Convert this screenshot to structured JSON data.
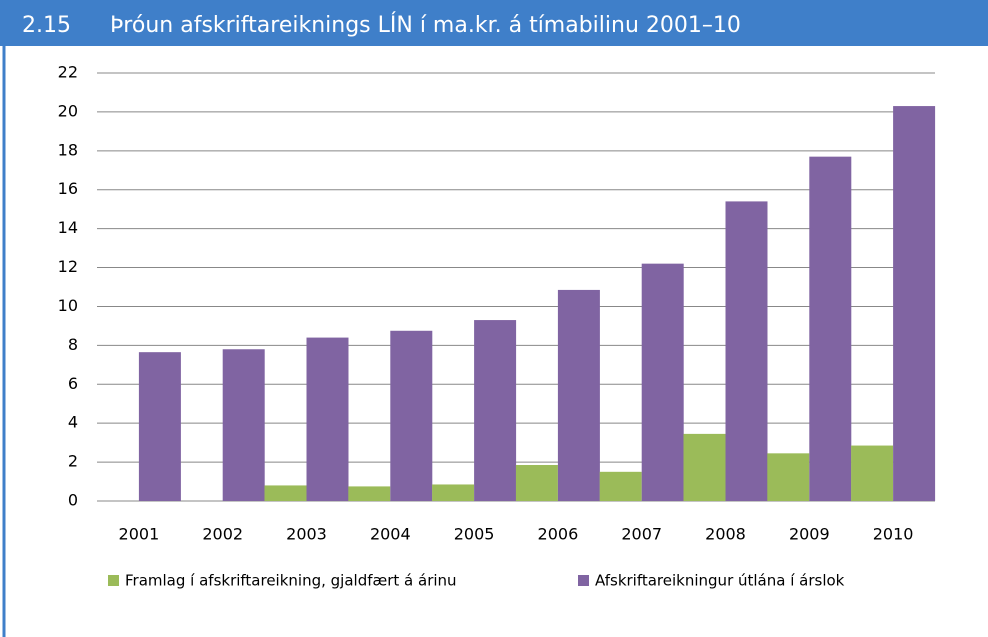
{
  "chart_data": {
    "type": "bar",
    "number": "2.15",
    "title": "Þróun afskriftareiknings LÍN í ma.kr. á tímabilinu 2001–10",
    "categories": [
      "2001",
      "2002",
      "2003",
      "2004",
      "2005",
      "2006",
      "2007",
      "2008",
      "2009",
      "2010"
    ],
    "series": [
      {
        "name": "Framlag í afskriftareikning, gjaldfært á árinu",
        "color": "#9bbb59",
        "values": [
          null,
          null,
          0.8,
          0.75,
          0.85,
          1.85,
          1.5,
          3.45,
          2.45,
          2.85
        ]
      },
      {
        "name": "Afskriftareikningur útlána í árslok",
        "color": "#8064a2",
        "values": [
          7.65,
          7.8,
          8.4,
          8.75,
          9.3,
          10.85,
          12.2,
          15.4,
          17.7,
          20.3
        ]
      }
    ],
    "ylim": [
      0,
      22
    ],
    "yticks": [
      0,
      2,
      4,
      6,
      8,
      10,
      12,
      14,
      16,
      18,
      20,
      22
    ],
    "grid": true,
    "legend": "bottom"
  }
}
